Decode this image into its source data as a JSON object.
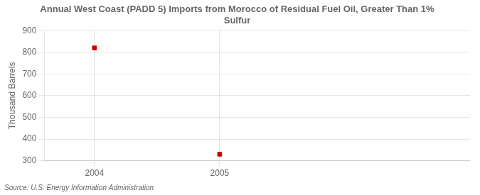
{
  "chart_data": {
    "type": "scatter",
    "title": "Annual West Coast (PADD 5) Imports from Morocco of Residual Fuel Oil, Greater Than 1%\nSulfur",
    "ylabel": "Thousand Barrels",
    "source": "Source: U.S. Energy Information Administration",
    "x": [
      2004,
      2005
    ],
    "values": [
      820,
      330
    ],
    "color": "#cc0000",
    "marker": "square",
    "xlim": [
      2003.6,
      2007.0
    ],
    "xticks": [
      2004,
      2005
    ],
    "ylim": [
      300,
      900
    ],
    "yticks": [
      300,
      400,
      500,
      600,
      700,
      800,
      900
    ],
    "grid": true
  }
}
